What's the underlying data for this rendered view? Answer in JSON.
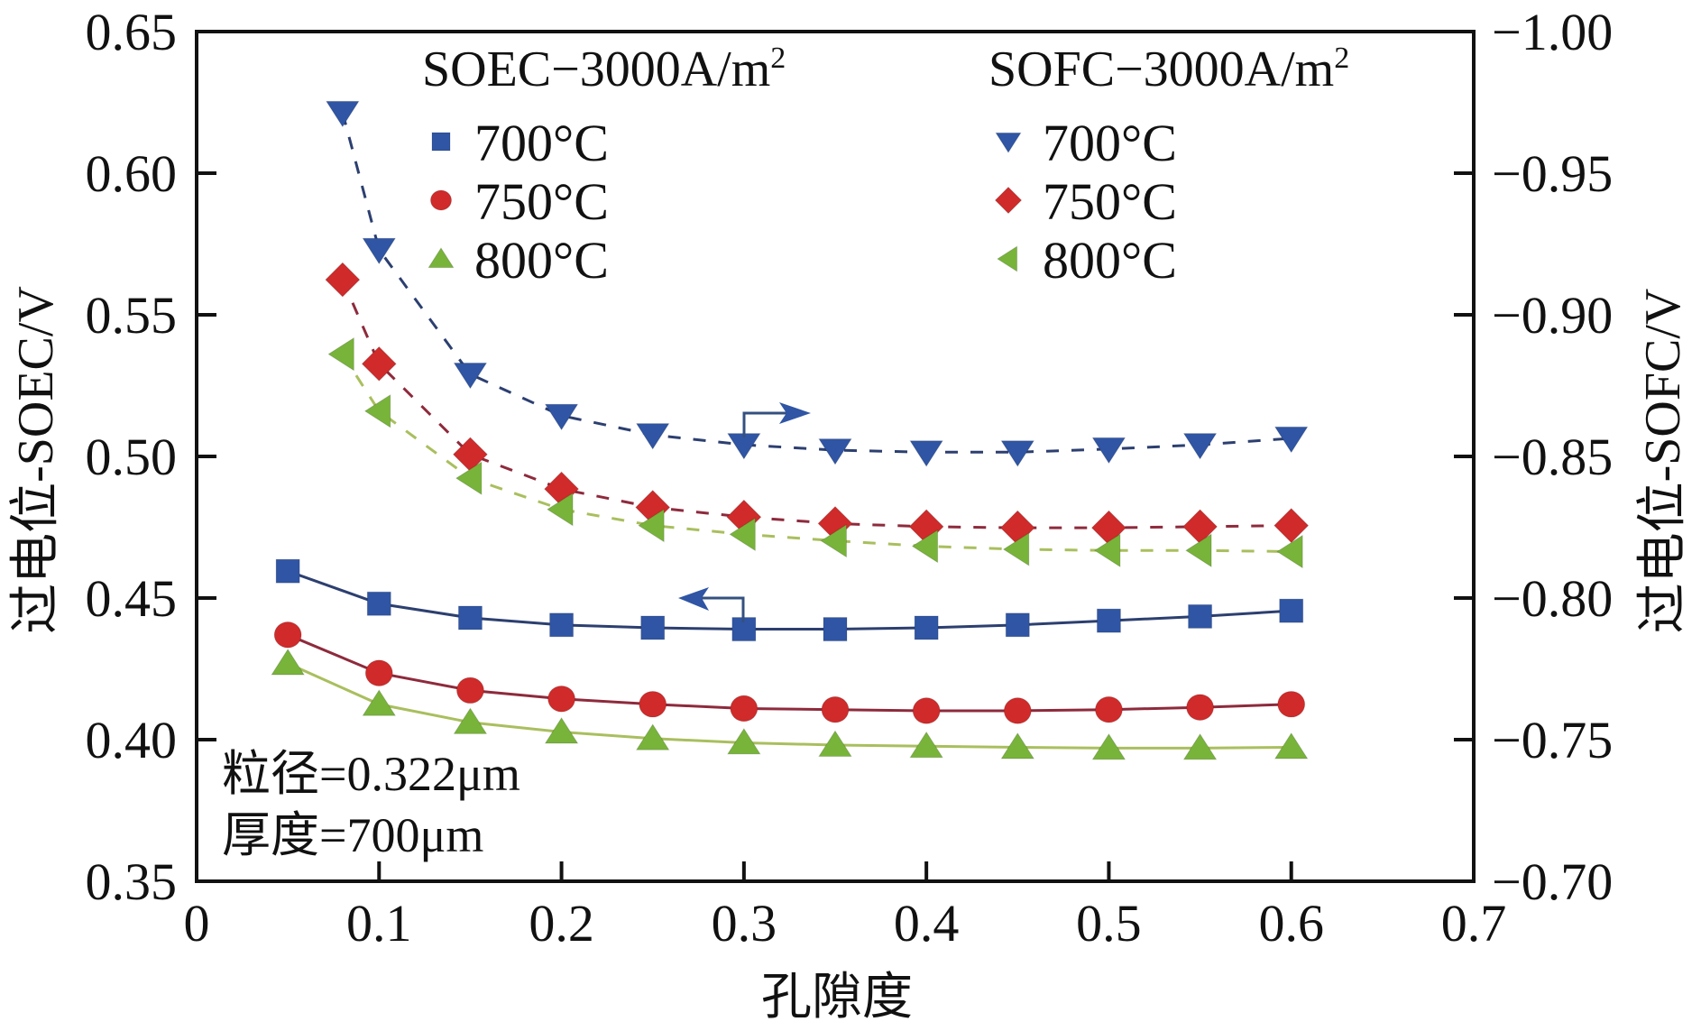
{
  "chart_data": {
    "type": "line",
    "title": "",
    "xlabel": "孔隙度",
    "ylabel_left": "过电位-SOEC/V",
    "ylabel_right": "过电位-SOFC/V",
    "xlim": [
      0,
      0.7
    ],
    "ylim_left": [
      0.35,
      0.65
    ],
    "ylim_right": [
      -0.7,
      -1.0
    ],
    "x_ticks": [
      "0",
      "0.1",
      "0.2",
      "0.3",
      "0.4",
      "0.5",
      "0.6",
      "0.7"
    ],
    "x_tick_values": [
      0,
      0.1,
      0.2,
      0.3,
      0.4,
      0.5,
      0.6,
      0.7
    ],
    "y_left_ticks": [
      "0.35",
      "0.40",
      "0.45",
      "0.50",
      "0.55",
      "0.60",
      "0.65"
    ],
    "y_left_tick_values": [
      0.35,
      0.4,
      0.45,
      0.5,
      0.55,
      0.6,
      0.65
    ],
    "y_right_ticks": [
      "−0.70",
      "−0.75",
      "−0.80",
      "−0.85",
      "−0.90",
      "−0.95",
      "−1.00"
    ],
    "y_right_tick_values": [
      -0.7,
      -0.75,
      -0.8,
      -0.85,
      -0.9,
      -0.95,
      -1.0
    ],
    "grid": false,
    "legend_groups": [
      {
        "title": "SOEC−3000A/m",
        "title_sup": "2",
        "position": "top-center",
        "items": [
          "700°C",
          "750°C",
          "800°C"
        ]
      },
      {
        "title": "SOFC−3000A/m",
        "title_sup": "2",
        "position": "top-right",
        "items": [
          "700°C",
          "750°C",
          "800°C"
        ]
      }
    ],
    "annotations": {
      "line1": "粒径=0.322μm",
      "line2": "厚度=700μm",
      "arrow_soec": "points-left (SOEC curves read on left axis)",
      "arrow_sofc": "points-right (SOFC curves read on right axis)"
    },
    "series": [
      {
        "name": "SOEC 700°C",
        "axis": "left",
        "marker": "square",
        "line": "solid",
        "color": "#2f55a4",
        "line_color": "#2c3f70",
        "x": [
          0.05,
          0.1,
          0.15,
          0.2,
          0.25,
          0.3,
          0.35,
          0.4,
          0.45,
          0.5,
          0.55,
          0.6
        ],
        "y": [
          0.4595,
          0.448,
          0.443,
          0.4405,
          0.4395,
          0.439,
          0.439,
          0.4395,
          0.4405,
          0.442,
          0.4435,
          0.4455
        ]
      },
      {
        "name": "SOEC 750°C",
        "axis": "left",
        "marker": "circle",
        "line": "solid",
        "color": "#d02a2a",
        "line_color": "#8e2a3c",
        "x": [
          0.05,
          0.1,
          0.15,
          0.2,
          0.25,
          0.3,
          0.35,
          0.4,
          0.45,
          0.5,
          0.55,
          0.6
        ],
        "y": [
          0.437,
          0.4235,
          0.4174,
          0.4144,
          0.4125,
          0.411,
          0.4106,
          0.4102,
          0.4102,
          0.4106,
          0.4114,
          0.4125
        ]
      },
      {
        "name": "SOEC 800°C",
        "axis": "left",
        "marker": "triangle-up",
        "line": "solid",
        "color": "#78b43a",
        "line_color": "#a9bf5e",
        "x": [
          0.05,
          0.1,
          0.15,
          0.2,
          0.25,
          0.3,
          0.35,
          0.4,
          0.45,
          0.5,
          0.55,
          0.6
        ],
        "y": [
          0.4269,
          0.4125,
          0.4061,
          0.4027,
          0.4004,
          0.3989,
          0.3981,
          0.3977,
          0.3973,
          0.397,
          0.397,
          0.3973
        ]
      },
      {
        "name": "SOFC 700°C",
        "axis": "right",
        "marker": "triangle-down",
        "line": "dashed",
        "color": "#2f55a4",
        "line_color": "#2c3f70",
        "x": [
          0.08,
          0.1,
          0.15,
          0.2,
          0.25,
          0.3,
          0.35,
          0.4,
          0.45,
          0.5,
          0.55,
          0.6
        ],
        "y": [
          -0.9714,
          -0.923,
          -0.879,
          -0.8644,
          -0.8576,
          -0.8541,
          -0.8522,
          -0.8515,
          -0.8515,
          -0.8526,
          -0.8541,
          -0.8564
        ]
      },
      {
        "name": "SOFC 750°C",
        "axis": "right",
        "marker": "diamond",
        "line": "dashed",
        "color": "#d02a2a",
        "line_color": "#8e2a3c",
        "x": [
          0.08,
          0.1,
          0.15,
          0.2,
          0.25,
          0.3,
          0.35,
          0.4,
          0.45,
          0.5,
          0.55,
          0.6
        ],
        "y": [
          -0.9124,
          -0.8827,
          -0.8507,
          -0.8385,
          -0.832,
          -0.8286,
          -0.8263,
          -0.8252,
          -0.8248,
          -0.8248,
          -0.8252,
          -0.8256
        ]
      },
      {
        "name": "SOFC 800°C",
        "axis": "right",
        "marker": "triangle-left",
        "line": "dashed",
        "color": "#78b43a",
        "line_color": "#a9bf5e",
        "x": [
          0.08,
          0.1,
          0.15,
          0.2,
          0.25,
          0.3,
          0.35,
          0.4,
          0.45,
          0.5,
          0.55,
          0.6
        ],
        "y": [
          -0.8861,
          -0.866,
          -0.8423,
          -0.8313,
          -0.8256,
          -0.8225,
          -0.8202,
          -0.8183,
          -0.8172,
          -0.8168,
          -0.8168,
          -0.8164
        ]
      }
    ]
  }
}
